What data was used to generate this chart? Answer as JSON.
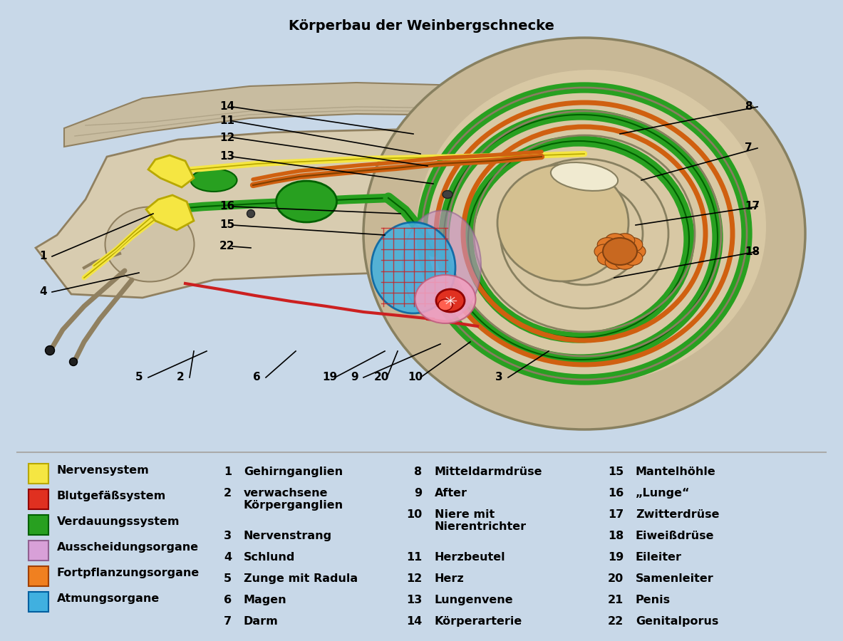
{
  "title": "Körperbau der Weinbergschnecke",
  "title_fontsize": 14,
  "title_fontweight": "bold",
  "background_color": "#c8d8e8",
  "legend_background": "#dce8f0",
  "legend_items": [
    {
      "color": "#f5e642",
      "label": "Nervensystem",
      "edgecolor": "#b8a800"
    },
    {
      "color": "#e03020",
      "label": "Blutgefäßsystem",
      "edgecolor": "#900000"
    },
    {
      "color": "#28a020",
      "label": "Verdauungssystem",
      "edgecolor": "#006000"
    },
    {
      "color": "#d8a0d8",
      "label": "Ausscheidungsorgane",
      "edgecolor": "#906090"
    },
    {
      "color": "#f08020",
      "label": "Fortpflanzungsorgane",
      "edgecolor": "#a04000"
    },
    {
      "color": "#40b0e0",
      "label": "Atmungsorgane",
      "edgecolor": "#0060a0"
    }
  ],
  "numbered_labels_col1": [
    {
      "num": "1",
      "text": "Gehirnganglien"
    },
    {
      "num": "2",
      "text": "verwachsene\nKörperganglien"
    },
    {
      "num": "3",
      "text": "Nervenstrang"
    },
    {
      "num": "4",
      "text": "Schlund"
    },
    {
      "num": "5",
      "text": "Zunge mit Radula"
    },
    {
      "num": "6",
      "text": "Magen"
    },
    {
      "num": "7",
      "text": "Darm"
    }
  ],
  "numbered_labels_col2": [
    {
      "num": "8",
      "text": "Mitteldarmdrüse"
    },
    {
      "num": "9",
      "text": "After"
    },
    {
      "num": "10",
      "text": "Niere mit\nNierentrichter"
    },
    {
      "num": "11",
      "text": "Herzbeutel"
    },
    {
      "num": "12",
      "text": "Herz"
    },
    {
      "num": "13",
      "text": "Lungenvene"
    },
    {
      "num": "14",
      "text": "Körperarterie"
    }
  ],
  "numbered_labels_col3": [
    {
      "num": "15",
      "text": "Mantelhöhle"
    },
    {
      "num": "16",
      "text": "„Lunge“"
    },
    {
      "num": "17",
      "text": "Zwitterdrüse"
    },
    {
      "num": "18",
      "text": "Eiweißdrüse"
    },
    {
      "num": "19",
      "text": "Eileiter"
    },
    {
      "num": "20",
      "text": "Samenleiter"
    },
    {
      "num": "21",
      "text": "Penis"
    },
    {
      "num": "22",
      "text": "Genitalporus"
    }
  ]
}
